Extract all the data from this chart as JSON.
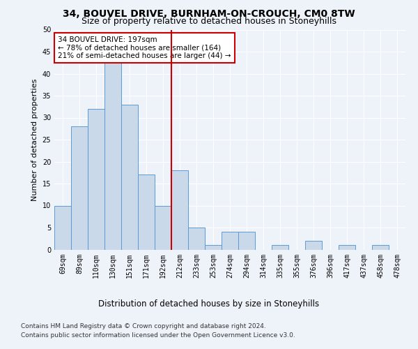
{
  "title": "34, BOUVEL DRIVE, BURNHAM-ON-CROUCH, CM0 8TW",
  "subtitle": "Size of property relative to detached houses in Stoneyhills",
  "xlabel": "Distribution of detached houses by size in Stoneyhills",
  "ylabel": "Number of detached properties",
  "categories": [
    "69sqm",
    "89sqm",
    "110sqm",
    "130sqm",
    "151sqm",
    "171sqm",
    "192sqm",
    "212sqm",
    "233sqm",
    "253sqm",
    "274sqm",
    "294sqm",
    "314sqm",
    "335sqm",
    "355sqm",
    "376sqm",
    "396sqm",
    "417sqm",
    "437sqm",
    "458sqm",
    "478sqm"
  ],
  "values": [
    10,
    28,
    32,
    43,
    33,
    17,
    10,
    18,
    5,
    1,
    4,
    4,
    0,
    1,
    0,
    2,
    0,
    1,
    0,
    1,
    0
  ],
  "bar_color": "#c9d9ea",
  "bar_edge_color": "#5b9bd5",
  "vline_x": 6.5,
  "vline_color": "#cc0000",
  "annotation_line1": "34 BOUVEL DRIVE: 197sqm",
  "annotation_line2": "← 78% of detached houses are smaller (164)",
  "annotation_line3": "21% of semi-detached houses are larger (44) →",
  "annotation_box_color": "#ffffff",
  "annotation_box_edge": "#cc0000",
  "ylim": [
    0,
    50
  ],
  "yticks": [
    0,
    5,
    10,
    15,
    20,
    25,
    30,
    35,
    40,
    45,
    50
  ],
  "footer1": "Contains HM Land Registry data © Crown copyright and database right 2024.",
  "footer2": "Contains public sector information licensed under the Open Government Licence v3.0.",
  "bg_color": "#eef2f9",
  "grid_color": "#ffffff",
  "title_fontsize": 10,
  "subtitle_fontsize": 9,
  "xlabel_fontsize": 8.5,
  "ylabel_fontsize": 8,
  "tick_fontsize": 7,
  "annotation_fontsize": 7.5,
  "footer_fontsize": 6.5
}
